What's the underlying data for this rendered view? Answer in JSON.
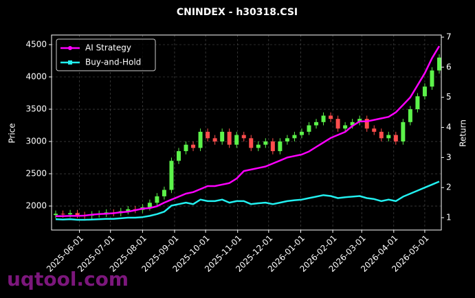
{
  "chart_data": {
    "type": "candlestick",
    "title": "CNINDEX - h30318.CSI",
    "ylabel": "Price",
    "y2label": "Return",
    "watermark": "uqtool.com",
    "x": [
      "2025-05-09",
      "2025-05-16",
      "2025-05-23",
      "2025-05-30",
      "2025-06-06",
      "2025-06-13",
      "2025-06-20",
      "2025-06-27",
      "2025-07-04",
      "2025-07-11",
      "2025-07-18",
      "2025-07-25",
      "2025-08-01",
      "2025-08-08",
      "2025-08-15",
      "2025-08-22",
      "2025-08-29",
      "2025-09-05",
      "2025-09-12",
      "2025-09-19",
      "2025-09-26",
      "2025-10-03",
      "2025-10-10",
      "2025-10-17",
      "2025-10-24",
      "2025-10-31",
      "2025-11-07",
      "2025-11-14",
      "2025-11-21",
      "2025-11-28",
      "2025-12-05",
      "2025-12-12",
      "2025-12-19",
      "2025-12-26",
      "2026-01-02",
      "2026-01-09",
      "2026-01-16",
      "2026-01-23",
      "2026-01-30",
      "2026-02-06",
      "2026-02-13",
      "2026-02-20",
      "2026-02-27",
      "2026-03-06",
      "2026-03-13",
      "2026-03-20",
      "2026-03-27",
      "2026-04-03",
      "2026-04-10",
      "2026-04-17",
      "2026-04-24",
      "2026-05-01",
      "2026-05-08",
      "2026-05-15"
    ],
    "open": [
      1860,
      1880,
      1870,
      1890,
      1860,
      1850,
      1870,
      1880,
      1900,
      1890,
      1920,
      1950,
      1940,
      1980,
      2050,
      2150,
      2250,
      2700,
      2850,
      2950,
      2900,
      3150,
      3050,
      3000,
      3150,
      2950,
      3100,
      3050,
      2900,
      2950,
      3000,
      2850,
      3000,
      3050,
      3100,
      3150,
      3250,
      3300,
      3400,
      3350,
      3200,
      3250,
      3300,
      3350,
      3200,
      3150,
      3050,
      3100,
      3000,
      3300,
      3500,
      3700,
      3850,
      4100
    ],
    "high": [
      1930,
      1930,
      1940,
      1940,
      1910,
      1920,
      1930,
      1950,
      1950,
      1970,
      2000,
      2000,
      2030,
      2100,
      2200,
      2300,
      2750,
      2900,
      3000,
      3000,
      3200,
      3200,
      3100,
      3200,
      3200,
      3150,
      3150,
      3100,
      3000,
      3050,
      3050,
      3050,
      3100,
      3150,
      3200,
      3300,
      3350,
      3450,
      3450,
      3400,
      3300,
      3350,
      3400,
      3400,
      3250,
      3200,
      3150,
      3150,
      3350,
      3550,
      3750,
      3900,
      4150,
      4350
    ],
    "low": [
      1810,
      1820,
      1820,
      1810,
      1800,
      1800,
      1820,
      1830,
      1840,
      1840,
      1870,
      1890,
      1890,
      1930,
      2000,
      2100,
      2200,
      2650,
      2800,
      2850,
      2850,
      3000,
      2950,
      2950,
      2900,
      2900,
      3000,
      2850,
      2850,
      2900,
      2800,
      2800,
      2950,
      3000,
      3050,
      3100,
      3200,
      3250,
      3300,
      3150,
      3150,
      3200,
      3250,
      3150,
      3100,
      3000,
      3000,
      2950,
      2950,
      3250,
      3450,
      3650,
      3800,
      4050
    ],
    "close": [
      1880,
      1870,
      1890,
      1860,
      1850,
      1870,
      1880,
      1900,
      1890,
      1920,
      1950,
      1940,
      1980,
      2050,
      2150,
      2250,
      2700,
      2850,
      2950,
      2900,
      3150,
      3050,
      3000,
      3150,
      2950,
      3100,
      3050,
      2900,
      2950,
      3000,
      2850,
      3000,
      3050,
      3100,
      3150,
      3250,
      3300,
      3400,
      3350,
      3200,
      3250,
      3300,
      3350,
      3200,
      3150,
      3050,
      3100,
      3000,
      3300,
      3500,
      3700,
      3850,
      4100,
      4300
    ],
    "up_color": "#5cf24a",
    "down_color": "#ff4d4d",
    "series": [
      {
        "name": "AI Strategy",
        "color": "#ff00ff",
        "axis": "y2",
        "marker": "circle",
        "values": [
          1.05,
          1.05,
          1.06,
          1.06,
          1.07,
          1.1,
          1.12,
          1.13,
          1.15,
          1.18,
          1.2,
          1.25,
          1.3,
          1.32,
          1.38,
          1.5,
          1.6,
          1.7,
          1.8,
          1.85,
          1.95,
          2.05,
          2.05,
          2.1,
          2.15,
          2.3,
          2.55,
          2.6,
          2.65,
          2.7,
          2.8,
          2.9,
          3.0,
          3.05,
          3.1,
          3.2,
          3.35,
          3.5,
          3.65,
          3.75,
          3.85,
          4.05,
          4.2,
          4.2,
          4.25,
          4.3,
          4.35,
          4.5,
          4.75,
          5.0,
          5.4,
          5.8,
          6.3,
          6.7
        ]
      },
      {
        "name": "Buy-and-Hold",
        "color": "#22f0f0",
        "axis": "y2",
        "marker": "square",
        "values": [
          0.95,
          0.94,
          0.95,
          0.93,
          0.93,
          0.94,
          0.95,
          0.96,
          0.96,
          0.98,
          1.0,
          1.0,
          1.02,
          1.06,
          1.12,
          1.2,
          1.4,
          1.45,
          1.5,
          1.45,
          1.6,
          1.55,
          1.55,
          1.6,
          1.5,
          1.55,
          1.55,
          1.45,
          1.48,
          1.5,
          1.45,
          1.5,
          1.55,
          1.58,
          1.6,
          1.65,
          1.7,
          1.75,
          1.72,
          1.65,
          1.68,
          1.7,
          1.72,
          1.65,
          1.62,
          1.55,
          1.6,
          1.55,
          1.7,
          1.8,
          1.9,
          2.0,
          2.1,
          2.2
        ]
      }
    ],
    "xlim": [
      "2025-05-05",
      "2026-05-17"
    ],
    "xticks": [
      "2025-06-01",
      "2025-07-01",
      "2025-08-01",
      "2025-09-01",
      "2025-10-01",
      "2025-11-01",
      "2025-12-01",
      "2026-01-01",
      "2026-02-01",
      "2026-03-01",
      "2026-04-01",
      "2026-05-01"
    ],
    "ylim": [
      1628,
      4649
    ],
    "yticks": [
      2000,
      2500,
      3000,
      3500,
      4000,
      4500
    ],
    "y2lim": [
      0.59,
      7.07
    ],
    "y2ticks": [
      1,
      2,
      3,
      4,
      5,
      6,
      7
    ],
    "grid": true,
    "legend": "upper left"
  }
}
